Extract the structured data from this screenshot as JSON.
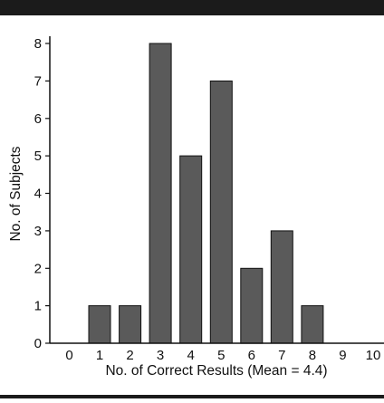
{
  "chart_data": {
    "type": "bar",
    "categories": [
      "0",
      "1",
      "2",
      "3",
      "4",
      "5",
      "6",
      "7",
      "8",
      "9",
      "10"
    ],
    "values": [
      0,
      1,
      1,
      8,
      5,
      7,
      2,
      3,
      1,
      0,
      0
    ],
    "title": "",
    "xlabel": "No. of Correct Results (Mean = 4.4)",
    "ylabel": "No. of Subjects",
    "ylim": [
      0,
      8
    ],
    "yticks": [
      "0",
      "1",
      "2",
      "3",
      "4",
      "5",
      "6",
      "7",
      "8"
    ],
    "grid": false,
    "bar_color": "#5a5a5a",
    "bar_edge_color": "#111111"
  }
}
